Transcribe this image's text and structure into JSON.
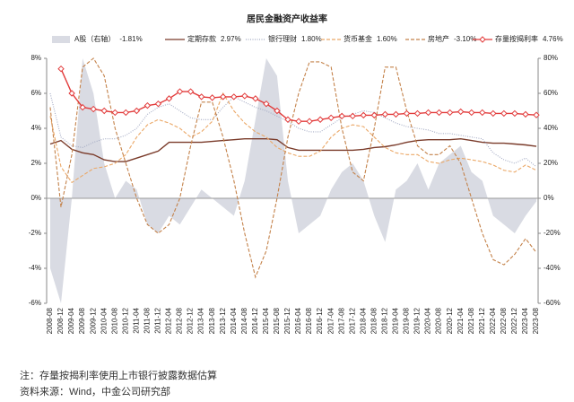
{
  "chart_data": {
    "type": "line",
    "title": "居民金融资产收益率",
    "categories": [
      "2008-08",
      "2008-12",
      "2009-04",
      "2009-08",
      "2009-12",
      "2010-04",
      "2010-08",
      "2010-12",
      "2011-04",
      "2011-08",
      "2011-12",
      "2012-04",
      "2012-08",
      "2012-12",
      "2013-04",
      "2013-08",
      "2013-12",
      "2014-04",
      "2014-08",
      "2014-12",
      "2015-04",
      "2015-08",
      "2015-12",
      "2016-04",
      "2016-08",
      "2016-12",
      "2017-04",
      "2017-08",
      "2017-12",
      "2018-04",
      "2018-08",
      "2018-12",
      "2019-04",
      "2019-08",
      "2019-12",
      "2020-04",
      "2020-08",
      "2020-12",
      "2021-04",
      "2021-08",
      "2021-12",
      "2022-04",
      "2022-08",
      "2022-12",
      "2023-04",
      "2023-08"
    ],
    "ylim": [
      -6,
      8
    ],
    "yticks": [
      {
        "value": -6,
        "label": "-6%"
      },
      {
        "value": -4,
        "label": "-4%"
      },
      {
        "value": -2,
        "label": "-2%"
      },
      {
        "value": 0,
        "label": "0%"
      },
      {
        "value": 2,
        "label": "2%"
      },
      {
        "value": 4,
        "label": "4%"
      },
      {
        "value": 6,
        "label": "6%"
      },
      {
        "value": 8,
        "label": "8%"
      }
    ],
    "y2lim": [
      -60,
      80
    ],
    "y2ticks": [
      {
        "value": -60,
        "label": "-60%"
      },
      {
        "value": -40,
        "label": "-40%"
      },
      {
        "value": -20,
        "label": "-20%"
      },
      {
        "value": 0,
        "label": "0%"
      },
      {
        "value": 20,
        "label": "20%"
      },
      {
        "value": 40,
        "label": "40%"
      },
      {
        "value": 60,
        "label": "60%"
      },
      {
        "value": 80,
        "label": "80%"
      }
    ],
    "series": [
      {
        "name": "A股（右轴）",
        "legend_value": "-1.81%",
        "color": "#d9dbe3",
        "style": "area",
        "axis": "y2",
        "values": [
          -40,
          -60,
          0,
          80,
          60,
          20,
          0,
          10,
          5,
          -15,
          -20,
          -10,
          -15,
          -5,
          5,
          0,
          -5,
          -10,
          10,
          45,
          80,
          70,
          10,
          -20,
          -15,
          -10,
          5,
          15,
          20,
          10,
          -10,
          -25,
          5,
          10,
          20,
          5,
          20,
          25,
          30,
          15,
          10,
          -10,
          -15,
          -20,
          -10,
          -1.81
        ]
      },
      {
        "name": "定期存款",
        "legend_value": "2.97%",
        "color": "#7a3b2a",
        "style": "solid",
        "values": [
          3.1,
          3.3,
          2.8,
          2.6,
          2.5,
          2.2,
          2.1,
          2.1,
          2.3,
          2.5,
          2.7,
          3.2,
          3.2,
          3.2,
          3.2,
          3.25,
          3.3,
          3.35,
          3.4,
          3.4,
          3.4,
          3.35,
          2.9,
          2.75,
          2.75,
          2.75,
          2.75,
          2.75,
          2.75,
          2.8,
          2.9,
          2.95,
          3.05,
          3.2,
          3.3,
          3.35,
          3.35,
          3.35,
          3.4,
          3.3,
          3.2,
          3.15,
          3.15,
          3.1,
          3.05,
          2.97
        ]
      },
      {
        "name": "银行理财",
        "legend_value": "1.80%",
        "color": "#a4abc4",
        "style": "dotted",
        "values": [
          6.0,
          3.5,
          3.0,
          2.9,
          3.2,
          3.4,
          3.4,
          3.6,
          4.0,
          4.8,
          5.2,
          5.4,
          5.0,
          4.6,
          4.5,
          4.5,
          5.2,
          5.8,
          5.5,
          5.2,
          5.0,
          4.7,
          4.4,
          4.0,
          3.8,
          3.8,
          4.2,
          4.6,
          4.8,
          5.0,
          4.9,
          4.6,
          4.3,
          4.1,
          4.0,
          3.9,
          3.7,
          3.7,
          3.6,
          3.5,
          3.4,
          2.6,
          2.2,
          2.0,
          2.3,
          1.8
        ]
      },
      {
        "name": "货币基金",
        "legend_value": "1.60%",
        "color": "#eba867",
        "style": "dashed",
        "values": [
          4.7,
          1.8,
          0.9,
          1.3,
          1.7,
          1.8,
          2.0,
          2.5,
          3.5,
          4.2,
          4.5,
          4.3,
          4.0,
          3.5,
          3.8,
          4.4,
          6.0,
          5.0,
          4.3,
          3.8,
          3.5,
          2.9,
          2.6,
          2.4,
          2.4,
          2.7,
          3.5,
          4.0,
          4.2,
          4.1,
          3.5,
          2.9,
          2.6,
          2.5,
          2.5,
          2.1,
          2.0,
          2.2,
          2.3,
          2.2,
          2.1,
          1.9,
          1.6,
          1.5,
          1.9,
          1.6
        ]
      },
      {
        "name": "房地产",
        "legend_value": "-3.10%",
        "color": "#c4824a",
        "style": "dashed",
        "values": [
          5.2,
          -0.5,
          2.5,
          7.5,
          8,
          7.0,
          4.0,
          2.0,
          0,
          -1.5,
          -2.0,
          -1.5,
          0,
          3,
          5.5,
          5.5,
          3.5,
          1,
          -2,
          -4.5,
          -3,
          0,
          3.5,
          6,
          7.8,
          7.8,
          7.5,
          4,
          1.5,
          1,
          4,
          7.5,
          7.5,
          5,
          3,
          2.5,
          2.5,
          3,
          2,
          0,
          -2,
          -3.5,
          -3.8,
          -3.2,
          -2.3,
          -3.1
        ]
      },
      {
        "name": "存量按揭利率",
        "legend_value": "4.76%",
        "color": "#e23b3b",
        "style": "solid",
        "marker": "diamond",
        "values": [
          null,
          7.4,
          6.0,
          5.2,
          5.1,
          5.0,
          4.9,
          4.9,
          5.0,
          5.3,
          5.4,
          5.7,
          6.1,
          6.1,
          5.8,
          5.75,
          5.8,
          5.8,
          5.85,
          5.7,
          5.4,
          5.0,
          4.5,
          4.4,
          4.4,
          4.5,
          4.6,
          4.7,
          4.7,
          4.75,
          4.75,
          4.8,
          4.8,
          4.85,
          4.85,
          4.9,
          4.9,
          4.9,
          4.95,
          4.9,
          4.9,
          4.85,
          4.85,
          4.85,
          4.8,
          4.76
        ]
      }
    ]
  },
  "notes": [
    "注：存量按揭利率使用上市银行披露数据估算",
    "资料来源：Wind，中金公司研究部"
  ]
}
